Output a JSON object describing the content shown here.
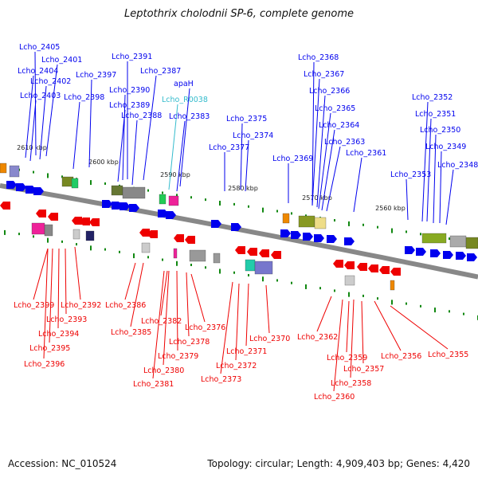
{
  "title": "Leptothrix cholodnii SP-6, complete genome",
  "footer": {
    "accession": "Accession: NC_010524",
    "summary": "Topology: circular; Length: 4,909,403 bp; Genes: 4,420"
  },
  "colors": {
    "forward": "#0000ee",
    "reverse": "#ee0000",
    "rna": "#33bbcc",
    "backbone": "#888888",
    "tick_green": "#118811"
  },
  "scale_labels": [
    "2610 kbp",
    "2600 kbp",
    "2590 kbp",
    "2580 kbp",
    "2570 kbp",
    "2560 kbp"
  ],
  "top_labels": [
    "Lcho_2405",
    "Lcho_2401",
    "Lcho_2404",
    "Lcho_2402",
    "Lcho_2403",
    "Lcho_2397",
    "Lcho_2398",
    "Lcho_2391",
    "Lcho_2387",
    "Lcho_2390",
    "Lcho_2389",
    "Lcho_2388",
    "apaH",
    "Lcho_R0038",
    "Lcho_2383",
    "Lcho_2375",
    "Lcho_2374",
    "Lcho_2377",
    "Lcho_2368",
    "Lcho_2367",
    "Lcho_2366",
    "Lcho_2365",
    "Lcho_2364",
    "Lcho_2363",
    "Lcho_2361",
    "Lcho_2369",
    "Lcho_2352",
    "Lcho_2351",
    "Lcho_2350",
    "Lcho_2349",
    "Lcho_2348",
    "Lcho_2353"
  ],
  "bottom_labels": [
    "Lcho_2399",
    "Lcho_2392",
    "Lcho_2393",
    "Lcho_2394",
    "Lcho_2395",
    "Lcho_2396",
    "Lcho_2386",
    "Lcho_2385",
    "Lcho_2382",
    "Lcho_2376",
    "Lcho_2378",
    "Lcho_2379",
    "Lcho_2380",
    "Lcho_2381",
    "Lcho_2370",
    "Lcho_2371",
    "Lcho_2372",
    "Lcho_2373",
    "Lcho_2362",
    "Lcho_2359",
    "Lcho_2357",
    "Lcho_2358",
    "Lcho_2360",
    "Lcho_2356",
    "Lcho_2355"
  ]
}
